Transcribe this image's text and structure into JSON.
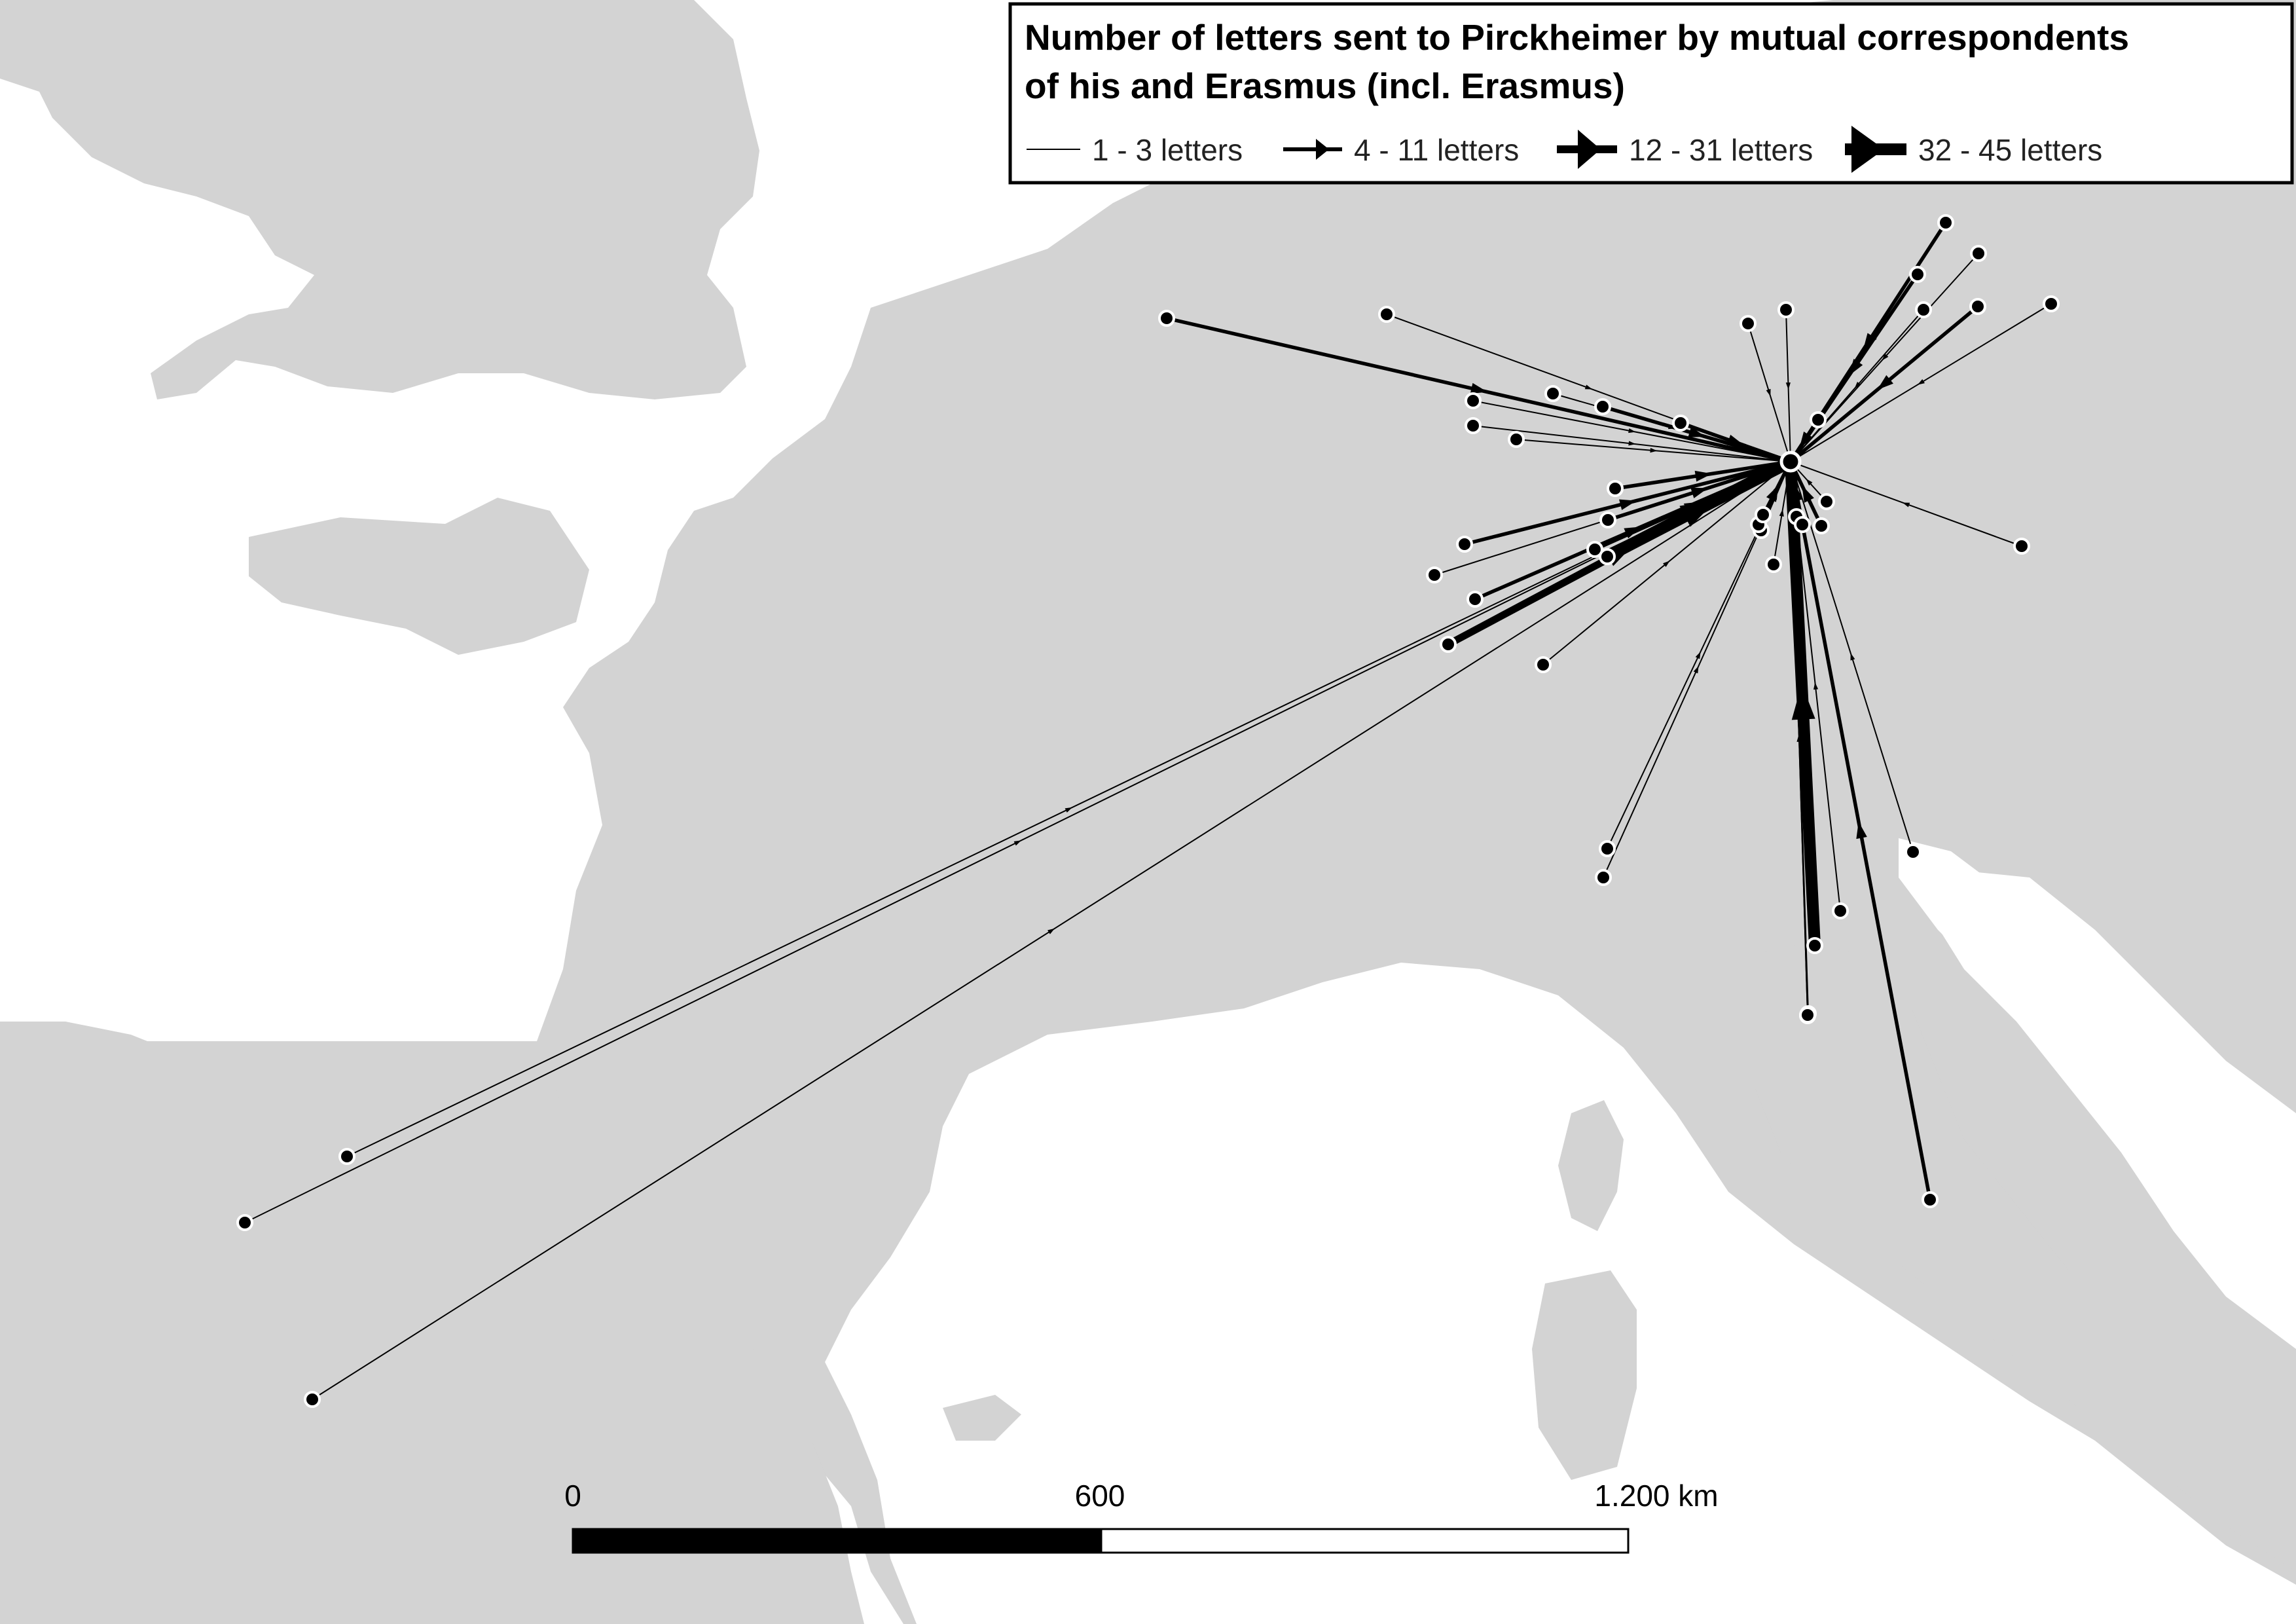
{
  "legend": {
    "title_line1": "Number of letters sent to Pirckheimer by mutual correspondents",
    "title_line2": "of his and Erasmus (incl. Erasmus)",
    "items": [
      {
        "label": "1 - 3 letters",
        "weight_class": 1
      },
      {
        "label": "4 - 11 letters",
        "weight_class": 2
      },
      {
        "label": "12 - 31 letters",
        "weight_class": 3
      },
      {
        "label": "32 - 45 letters",
        "weight_class": 4
      }
    ]
  },
  "scale_bar": {
    "label_start": "0",
    "label_mid": "600",
    "label_end": "1.200 km"
  },
  "colors": {
    "land": "#d3d3d3",
    "sea": "#ffffff",
    "lines": "#000000",
    "nodes": "#000000",
    "node_outline": "#ffffff",
    "legend_bg": "#ffffff"
  },
  "network": {
    "hub": "Nuremberg (Pirckheimer)",
    "flows": [
      {
        "weight_class": 2
      },
      {
        "weight_class": 1
      },
      {
        "weight_class": 1
      },
      {
        "weight_class": 1
      },
      {
        "weight_class": 1
      },
      {
        "weight_class": 2
      },
      {
        "weight_class": 2
      },
      {
        "weight_class": 1
      },
      {
        "weight_class": 2
      },
      {
        "weight_class": 1
      },
      {
        "weight_class": 2
      },
      {
        "weight_class": 1
      },
      {
        "weight_class": 1
      },
      {
        "weight_class": 2
      },
      {
        "weight_class": 1
      },
      {
        "weight_class": 1
      },
      {
        "weight_class": 2
      },
      {
        "weight_class": 1
      },
      {
        "weight_class": 2
      },
      {
        "weight_class": 2
      },
      {
        "weight_class": 2
      },
      {
        "weight_class": 2
      },
      {
        "weight_class": 1
      },
      {
        "weight_class": 2
      },
      {
        "weight_class": 3
      },
      {
        "weight_class": 4
      },
      {
        "weight_class": 1
      },
      {
        "weight_class": 1
      },
      {
        "weight_class": 1
      },
      {
        "weight_class": 1
      },
      {
        "weight_class": 1
      },
      {
        "weight_class": 1
      },
      {
        "weight_class": 1
      },
      {
        "weight_class": 1
      },
      {
        "weight_class": 1
      },
      {
        "weight_class": 2
      },
      {
        "weight_class": 2
      },
      {
        "weight_class": 2
      },
      {
        "weight_class": 1
      },
      {
        "weight_class": 1
      },
      {
        "weight_class": 4
      },
      {
        "weight_class": 1
      },
      {
        "weight_class": 1
      },
      {
        "weight_class": 2
      },
      {
        "weight_class": 1
      },
      {
        "weight_class": 1
      },
      {
        "weight_class": 1
      }
    ]
  }
}
